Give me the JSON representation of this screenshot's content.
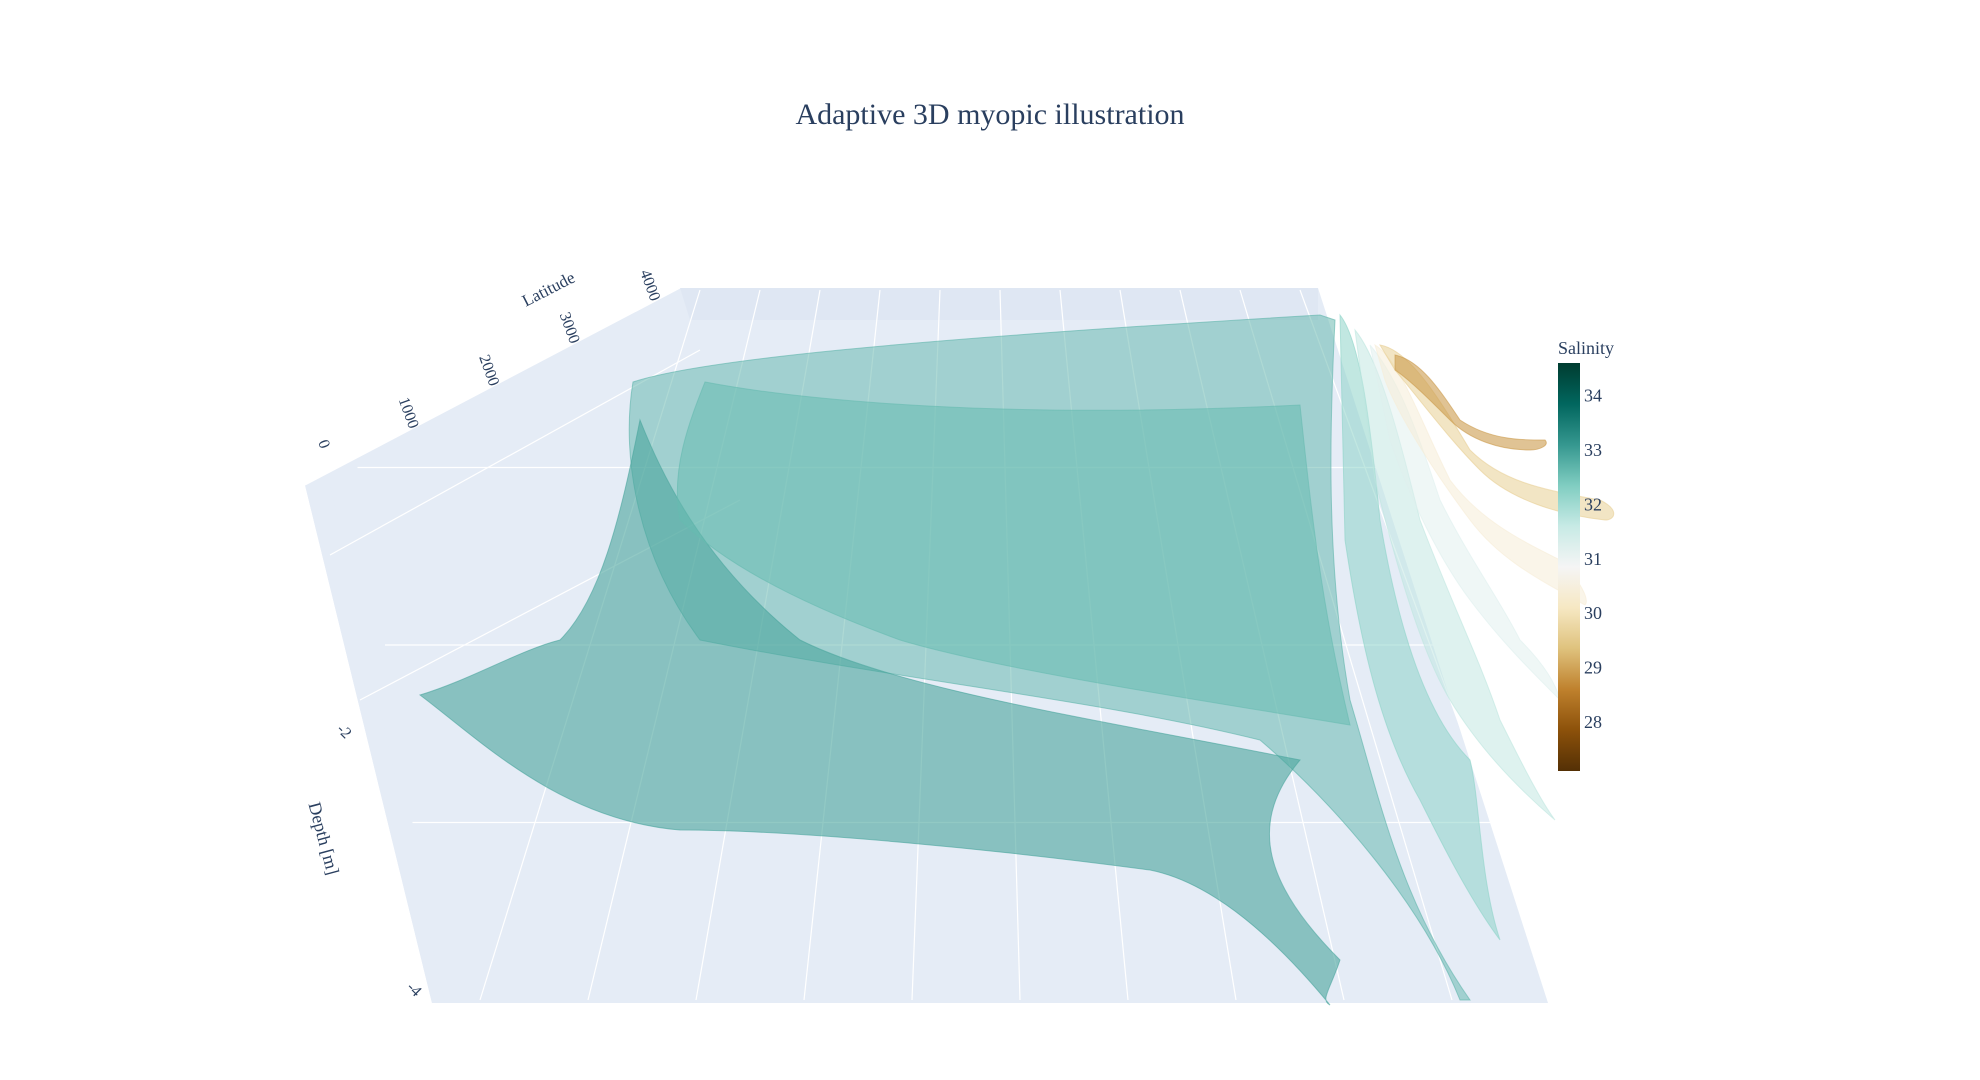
{
  "chart_data": {
    "type": "surface",
    "title": "Adaptive 3D myopic illustration",
    "axes": {
      "latitude": {
        "label": "Latitude",
        "ticks": [
          "0",
          "1000",
          "2000",
          "3000",
          "4000"
        ],
        "range": [
          0,
          4000
        ]
      },
      "depth": {
        "label": "Depth [m]",
        "ticks": [
          "-2",
          "-4"
        ]
      },
      "longitude": {
        "label": "",
        "ticks": []
      }
    },
    "colorbar": {
      "title": "Salinity",
      "ticks": [
        "34",
        "33",
        "32",
        "31",
        "30",
        "29",
        "28"
      ],
      "range": [
        27.1,
        34.6
      ],
      "colorscale": [
        "#543005",
        "#8c510a",
        "#bf812d",
        "#dfc27d",
        "#f6e8c3",
        "#f5f5f5",
        "#c7eae5",
        "#80cdc1",
        "#35978f",
        "#01665e",
        "#003c30"
      ]
    },
    "scene": {
      "background": "#e5ecf6",
      "gridcolor": "#ffffff",
      "grid": true
    },
    "surfaces": [
      {
        "salinity": 32.7,
        "opacity": 0.5
      },
      {
        "salinity": 32.9,
        "opacity": 0.6
      },
      {
        "salinity": 32.6,
        "opacity": 0.55
      },
      {
        "salinity": 32.2,
        "opacity": 0.55
      },
      {
        "salinity": 31.7,
        "opacity": 0.5
      },
      {
        "salinity": 31.2,
        "opacity": 0.5
      },
      {
        "salinity": 30.4,
        "opacity": 0.55
      },
      {
        "salinity": 29.6,
        "opacity": 0.55
      },
      {
        "salinity": 28.9,
        "opacity": 0.6
      }
    ]
  }
}
